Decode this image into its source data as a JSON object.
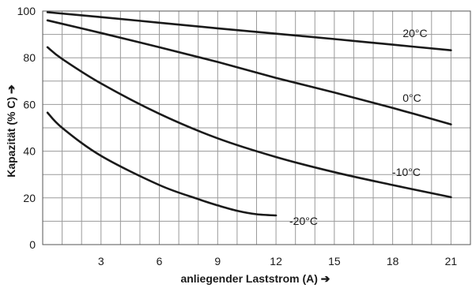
{
  "chart_data": {
    "type": "line",
    "xlabel": "anliegender Laststrom (A) ➔",
    "ylabel": "Kapazität  (% C) ➔",
    "xlim": [
      0,
      22
    ],
    "ylim": [
      0,
      100
    ],
    "x_ticks": [
      3,
      6,
      9,
      12,
      15,
      18,
      21
    ],
    "y_ticks": [
      0,
      20,
      40,
      60,
      80,
      100
    ],
    "grid": true,
    "series": [
      {
        "name": "20°C",
        "x": [
          0.25,
          3,
          6,
          9,
          12,
          15,
          18,
          21
        ],
        "y": [
          99.5,
          97.4,
          95.0,
          92.6,
          90.3,
          88.0,
          85.6,
          83.2
        ]
      },
      {
        "name": "0°C",
        "x": [
          0.25,
          3,
          6,
          9,
          12,
          15,
          18,
          21
        ],
        "y": [
          96.0,
          90.6,
          84.5,
          78.2,
          71.4,
          65.1,
          58.5,
          51.5
        ]
      },
      {
        "name": "-10°C",
        "x": [
          0.25,
          1,
          3,
          6,
          9,
          12,
          15,
          18,
          21
        ],
        "y": [
          84.5,
          79.5,
          69.0,
          56.0,
          45.5,
          37.5,
          31.0,
          25.5,
          20.3
        ]
      },
      {
        "name": "-20°C",
        "x": [
          0.25,
          1,
          3,
          6,
          8,
          9,
          10,
          11,
          12
        ],
        "y": [
          56.5,
          50.0,
          38.0,
          25.5,
          19.5,
          16.8,
          14.5,
          13.0,
          12.5
        ]
      }
    ]
  }
}
